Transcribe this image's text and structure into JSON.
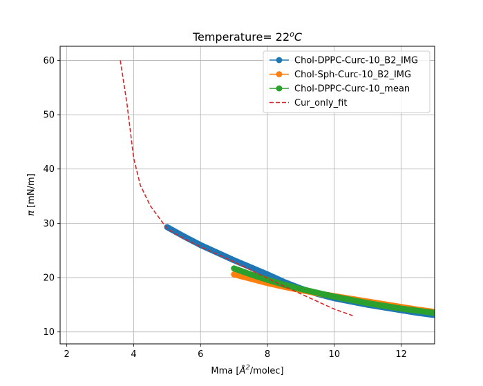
{
  "chart_data": {
    "type": "line",
    "title_prefix": "Temperature= 22",
    "title_sup": "o",
    "title_unit": "C",
    "xlabel_prefix": "Mma [",
    "xlabel_unit": "Å",
    "xlabel_sup": "2",
    "xlabel_suffix": "/molec]",
    "ylabel_symbol": "π",
    "ylabel_suffix": " [mN/m]",
    "xlim": [
      1.8,
      13.0
    ],
    "ylim": [
      7.8,
      62.6
    ],
    "xticks": [
      2,
      4,
      6,
      8,
      10,
      12
    ],
    "yticks": [
      10,
      20,
      30,
      40,
      50,
      60
    ],
    "grid": true,
    "legend_position": "top-right",
    "series": [
      {
        "name": "Chol-DPPC-Curc-10_B2_IMG",
        "color": "#1f77b4",
        "style": "marker-line",
        "x": [
          5.0,
          5.5,
          6.0,
          6.5,
          7.0,
          7.5,
          8.0,
          8.5,
          9.0,
          9.5,
          10.0,
          10.5,
          11.0,
          11.5,
          12.0,
          12.5,
          13.0
        ],
        "y": [
          29.3,
          27.6,
          26.0,
          24.6,
          23.2,
          21.9,
          20.6,
          19.2,
          18.0,
          17.0,
          16.2,
          15.6,
          15.0,
          14.5,
          14.0,
          13.5,
          13.1
        ]
      },
      {
        "name": "Chol-Sph-Curc-10_B2_IMG",
        "color": "#ff7f0e",
        "style": "marker-line",
        "x": [
          7.0,
          7.5,
          8.0,
          8.5,
          9.0,
          9.5,
          10.0,
          10.5,
          11.0,
          11.5,
          12.0,
          12.5,
          13.0
        ],
        "y": [
          20.6,
          19.8,
          19.0,
          18.3,
          17.7,
          17.1,
          16.6,
          16.1,
          15.6,
          15.1,
          14.6,
          14.1,
          13.7
        ]
      },
      {
        "name": "Chol-DPPC-Curc-10_mean",
        "color": "#2ca02c",
        "style": "marker-line",
        "x": [
          7.0,
          7.5,
          8.0,
          8.5,
          9.0,
          9.5,
          10.0,
          10.5,
          11.0,
          11.5,
          12.0,
          12.5,
          13.0
        ],
        "y": [
          21.7,
          20.6,
          19.6,
          18.7,
          17.9,
          17.2,
          16.5,
          15.9,
          15.3,
          14.8,
          14.3,
          13.9,
          13.5
        ]
      },
      {
        "name": "Cur_only_fit",
        "color": "#d62728",
        "style": "dashed",
        "x": [
          3.6,
          3.8,
          4.0,
          4.2,
          4.5,
          5.0,
          5.5,
          6.0,
          6.5,
          7.0,
          7.5,
          8.0,
          8.5,
          9.0,
          9.5,
          10.0,
          10.55
        ],
        "y": [
          60.0,
          52.0,
          42.0,
          37.0,
          33.2,
          29.0,
          27.2,
          25.7,
          24.3,
          22.9,
          21.4,
          19.9,
          18.4,
          17.0,
          15.6,
          14.2,
          13.0
        ]
      }
    ]
  }
}
